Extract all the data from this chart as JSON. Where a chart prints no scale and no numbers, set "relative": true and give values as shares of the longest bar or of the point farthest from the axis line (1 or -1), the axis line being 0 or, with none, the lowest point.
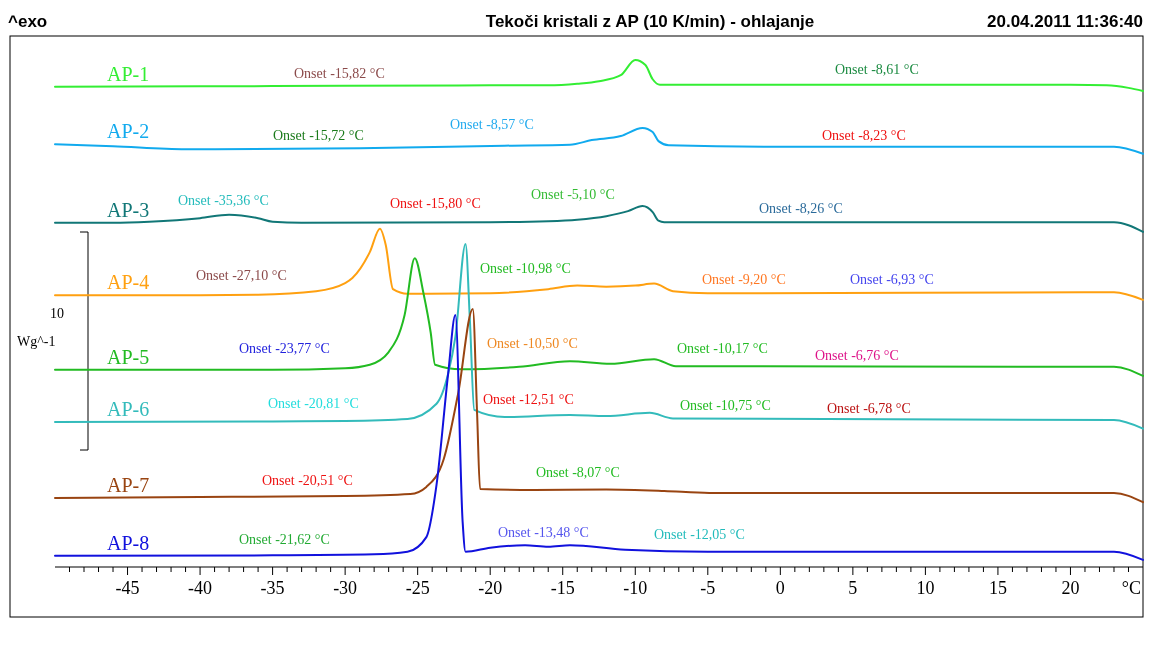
{
  "chart_data": {
    "type": "line",
    "relative": true,
    "title": "Tekoči kristali z AP (10 K/min) - ohlajanje",
    "xlabel": "°C",
    "ylabel": "Wg^-1",
    "xlim": [
      -50,
      25
    ],
    "xticks": [
      {
        "value": -49,
        "label": null
      },
      {
        "value": -48,
        "label": null
      },
      {
        "value": -47,
        "label": null
      },
      {
        "value": -46,
        "label": null
      },
      -45,
      {
        "value": -44,
        "label": null
      },
      {
        "value": -43,
        "label": null
      },
      {
        "value": -42,
        "label": null
      },
      {
        "value": -41,
        "label": null
      },
      -40,
      {
        "value": -39,
        "label": null
      },
      {
        "value": -38,
        "label": null
      },
      {
        "value": -37,
        "label": null
      },
      {
        "value": -36,
        "label": null
      },
      -35,
      {
        "value": -34,
        "label": null
      },
      {
        "value": -33,
        "label": null
      },
      {
        "value": -32,
        "label": null
      },
      {
        "value": -31,
        "label": null
      },
      -30,
      {
        "value": -29,
        "label": null
      },
      {
        "value": -28,
        "label": null
      },
      {
        "value": -27,
        "label": null
      },
      {
        "value": -26,
        "label": null
      },
      -25,
      {
        "value": -24,
        "label": null
      },
      {
        "value": -23,
        "label": null
      },
      {
        "value": -22,
        "label": null
      },
      {
        "value": -21,
        "label": null
      },
      -20,
      {
        "value": -19,
        "label": null
      },
      {
        "value": -18,
        "label": null
      },
      {
        "value": -17,
        "label": null
      },
      {
        "value": -16,
        "label": null
      },
      -15,
      {
        "value": -14,
        "label": null
      },
      {
        "value": -13,
        "label": null
      },
      {
        "value": -12,
        "label": null
      },
      {
        "value": -11,
        "label": null
      },
      -10,
      {
        "value": -9,
        "label": null
      },
      {
        "value": -8,
        "label": null
      },
      {
        "value": -7,
        "label": null
      },
      {
        "value": -6,
        "label": null
      },
      -5,
      {
        "value": -4,
        "label": null
      },
      {
        "value": -3,
        "label": null
      },
      {
        "value": -2,
        "label": null
      },
      {
        "value": -1,
        "label": null
      },
      0,
      {
        "value": 1,
        "label": null
      },
      {
        "value": 2,
        "label": null
      },
      {
        "value": 3,
        "label": null
      },
      {
        "value": 4,
        "label": null
      },
      5,
      {
        "value": 6,
        "label": null
      },
      {
        "value": 7,
        "label": null
      },
      {
        "value": 8,
        "label": null
      },
      {
        "value": 9,
        "label": null
      },
      10,
      {
        "value": 11,
        "label": null
      },
      {
        "value": 12,
        "label": null
      },
      {
        "value": 13,
        "label": null
      },
      {
        "value": 14,
        "label": null
      },
      15,
      {
        "value": 16,
        "label": null
      },
      {
        "value": 17,
        "label": null
      },
      {
        "value": 18,
        "label": null
      },
      {
        "value": 19,
        "label": null
      },
      20,
      {
        "value": 21,
        "label": null
      },
      {
        "value": 22,
        "label": null
      },
      {
        "value": 23,
        "label": null
      },
      {
        "value": 24,
        "label": null
      }
    ],
    "series": [
      {
        "name": "AP-1",
        "color": "#33ee33",
        "x": [
          -50,
          -40,
          -30,
          -20,
          -16,
          -14,
          -12.5,
          -11,
          -10,
          -9.3,
          -8.8,
          -8.3,
          0,
          10,
          20,
          22.5,
          24,
          25
        ],
        "values": [
          0.947,
          0.948,
          0.949,
          0.95,
          0.95,
          0.953,
          0.958,
          0.97,
          1,
          0.99,
          0.962,
          0.951,
          0.951,
          0.951,
          0.951,
          0.95,
          0.945,
          0.939
        ]
      },
      {
        "name": "AP-2",
        "color": "#11aaee",
        "x": [
          -50,
          -46,
          -41,
          -29,
          -19,
          -14.5,
          -13,
          -11,
          -9.5,
          -8.8,
          -8.4,
          -7.7,
          0,
          23,
          25
        ],
        "values": [
          0.834,
          0.83,
          0.824,
          0.826,
          0.831,
          0.833,
          0.842,
          0.85,
          0.866,
          0.858,
          0.84,
          0.832,
          0.829,
          0.829,
          0.815
        ]
      },
      {
        "name": "AP-3",
        "color": "#117777",
        "x": [
          -50,
          -46,
          -43.5,
          -40,
          -38,
          -36,
          -35,
          -33,
          -20,
          -16,
          -14,
          -12,
          -10.5,
          -9.5,
          -8.8,
          -8.4,
          -8,
          23,
          25
        ],
        "values": [
          0.679,
          0.679,
          0.681,
          0.688,
          0.695,
          0.688,
          0.681,
          0.679,
          0.68,
          0.682,
          0.685,
          0.692,
          0.702,
          0.712,
          0.7,
          0.683,
          0.68,
          0.68,
          0.661
        ]
      },
      {
        "name": "AP-4",
        "color": "#ffa010",
        "x": [
          -50,
          -40,
          -36,
          -32,
          -30,
          -29.5,
          -28.3,
          -27.6,
          -27.2,
          -26.7,
          -25.7,
          -20,
          -16,
          -14,
          -12,
          -10,
          -8.7,
          -7.4,
          -5,
          23,
          25
        ],
        "values": [
          0.536,
          0.536,
          0.537,
          0.544,
          0.56,
          0.57,
          0.621,
          0.667,
          0.635,
          0.548,
          0.539,
          0.54,
          0.548,
          0.555,
          0.553,
          0.555,
          0.559,
          0.544,
          0.54,
          0.542,
          0.527
        ]
      },
      {
        "name": "AP-5",
        "color": "#22bb22",
        "x": [
          -50,
          -35,
          -30,
          -28.3,
          -27,
          -25.9,
          -25.2,
          -24.6,
          -24.1,
          -23.8,
          -22,
          -18,
          -14.5,
          -11.7,
          -8.7,
          -7.2,
          23,
          25
        ],
        "values": [
          0.389,
          0.389,
          0.392,
          0.399,
          0.424,
          0.497,
          0.609,
          0.54,
          0.462,
          0.399,
          0.39,
          0.395,
          0.406,
          0.401,
          0.41,
          0.396,
          0.395,
          0.377
        ]
      },
      {
        "name": "AP-6",
        "color": "#33bbbb",
        "x": [
          -50,
          -35,
          -30,
          -25.7,
          -23.7,
          -22.9,
          -22.4,
          -21.7,
          -21.4,
          -21.1,
          -19,
          -14.5,
          -12,
          -9,
          -7.4,
          23,
          25
        ],
        "values": [
          0.286,
          0.287,
          0.288,
          0.292,
          0.322,
          0.381,
          0.454,
          0.637,
          0.487,
          0.31,
          0.296,
          0.3,
          0.298,
          0.304,
          0.293,
          0.29,
          0.273
        ]
      },
      {
        "name": "AP-7",
        "color": "#994411",
        "x": [
          -50,
          -40,
          -30,
          -25.5,
          -24.4,
          -23.2,
          -22.2,
          -21.2,
          -20.9,
          -20.7,
          -17,
          -12,
          -8,
          -4.9,
          23,
          25
        ],
        "values": [
          0.136,
          0.138,
          0.14,
          0.144,
          0.158,
          0.213,
          0.344,
          0.509,
          0.3,
          0.154,
          0.152,
          0.153,
          0.15,
          0.146,
          0.146,
          0.128
        ]
      },
      {
        "name": "AP-8",
        "color": "#1111dd",
        "x": [
          -50,
          -35,
          -28,
          -25.7,
          -24.4,
          -23.7,
          -22.9,
          -22.4,
          -21.9,
          -21.7,
          -20,
          -17.6,
          -16,
          -14.5,
          -10.7,
          -5,
          23,
          25
        ],
        "values": [
          0.022,
          0.023,
          0.025,
          0.03,
          0.059,
          0.162,
          0.381,
          0.497,
          0.089,
          0.03,
          0.038,
          0.043,
          0.04,
          0.043,
          0.034,
          0.03,
          0.03,
          0.014
        ]
      }
    ],
    "annotations": [
      "^exo",
      "20.04.2011 11:36:40",
      "10",
      "Onset -15,82 °C",
      "Onset -8,61 °C",
      "Onset -15,72 °C",
      "Onset -8,57 °C",
      "Onset -8,23 °C",
      "Onset -35,36 °C",
      "Onset -15,80 °C",
      "Onset -5,10 °C",
      "Onset -8,26 °C",
      "Onset -27,10 °C",
      "Onset -10,98 °C",
      "Onset -9,20 °C",
      "Onset -6,93 °C",
      "Onset -23,77 °C",
      "Onset -10,50 °C",
      "Onset -10,17 °C",
      "Onset -6,76 °C",
      "Onset -20,81 °C",
      "Onset -12,51 °C",
      "Onset -10,75 °C",
      "Onset -6,78 °C",
      "Onset -20,51 °C",
      "Onset -8,07 °C",
      "Onset -21,62 °C",
      "Onset -13,48 °C",
      "Onset -12,05 °C"
    ]
  }
}
